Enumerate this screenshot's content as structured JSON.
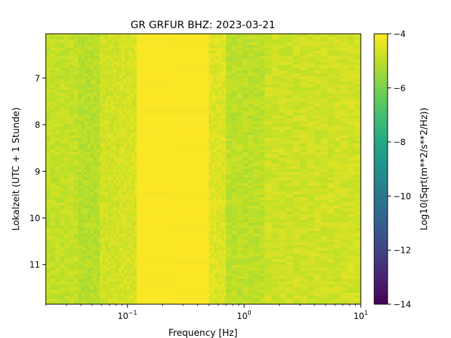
{
  "chart_data": {
    "type": "heatmap",
    "title": "GR GRFUR  BHZ: 2023-03-21",
    "xlabel": "Frequency [Hz]",
    "ylabel": "Lokalzeit (UTC + 1 Stunde)",
    "colorbar_label": "Log10(Sqrt(m**2/s**2/Hz))",
    "x_scale": "log",
    "xlim": [
      0.02,
      10
    ],
    "ylim": [
      11.85,
      6.05
    ],
    "y_inverted": true,
    "x_ticks": [
      {
        "value": 0.1,
        "base": "10",
        "exp": "−1"
      },
      {
        "value": 1,
        "base": "10",
        "exp": "0"
      },
      {
        "value": 10,
        "base": "10",
        "exp": "1"
      }
    ],
    "y_ticks": [
      {
        "value": 7,
        "label": "7"
      },
      {
        "value": 8,
        "label": "8"
      },
      {
        "value": 9,
        "label": "9"
      },
      {
        "value": 10,
        "label": "10"
      },
      {
        "value": 11,
        "label": "11"
      }
    ],
    "colorbar": {
      "colormap": "viridis",
      "vmin": -14,
      "vmax": -4,
      "ticks": [
        {
          "value": -4,
          "label": "−4"
        },
        {
          "value": -6,
          "label": "−6"
        },
        {
          "value": -8,
          "label": "−8"
        },
        {
          "value": -10,
          "label": "−10"
        },
        {
          "value": -12,
          "label": "−12"
        },
        {
          "value": -14,
          "label": "−14"
        }
      ]
    },
    "frequency_bands": [
      {
        "f_low": 0.02,
        "f_high": 0.038,
        "level": -4.9
      },
      {
        "f_low": 0.038,
        "f_high": 0.058,
        "level": -5.1
      },
      {
        "f_low": 0.058,
        "f_high": 0.085,
        "level": -4.7
      },
      {
        "f_low": 0.085,
        "f_high": 0.12,
        "level": -4.6
      },
      {
        "f_low": 0.12,
        "f_high": 0.5,
        "level": -4.05
      },
      {
        "f_low": 0.5,
        "f_high": 0.7,
        "level": -4.5
      },
      {
        "f_low": 0.7,
        "f_high": 1.5,
        "level": -5.0
      },
      {
        "f_low": 1.5,
        "f_high": 4.0,
        "level": -4.75
      },
      {
        "f_low": 4.0,
        "f_high": 10,
        "level": -4.7
      }
    ]
  }
}
